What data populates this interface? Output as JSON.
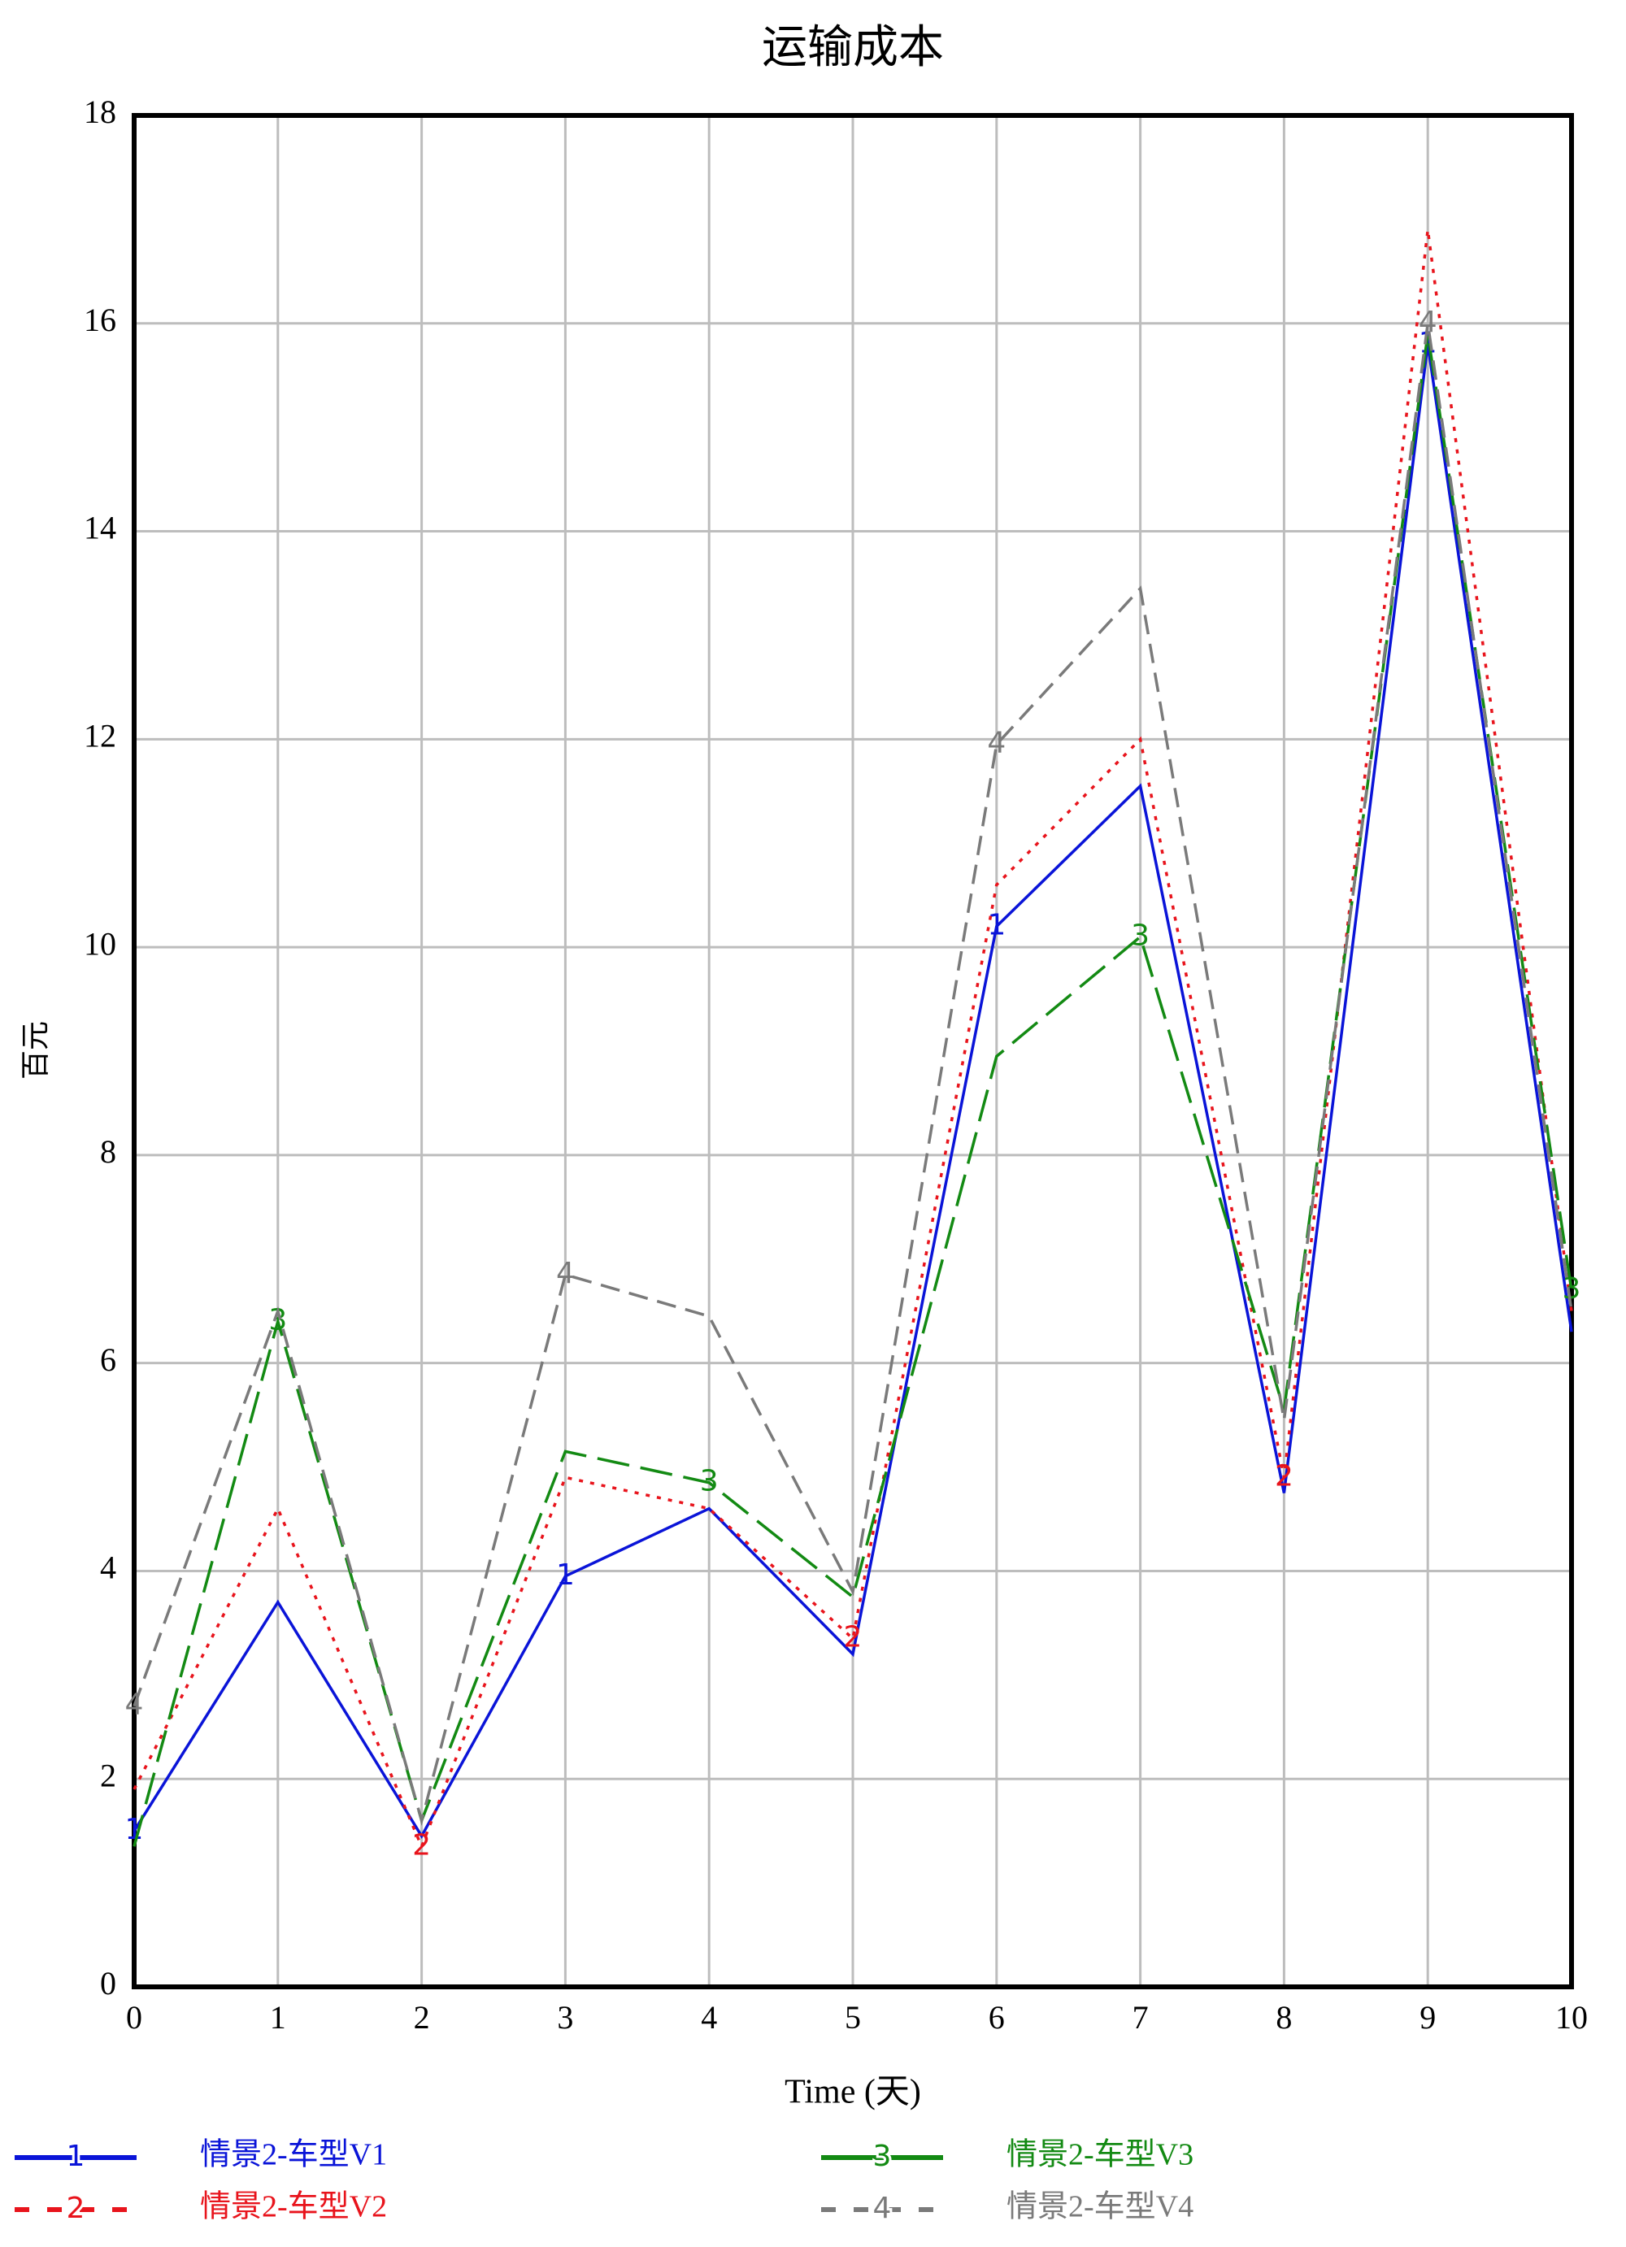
{
  "chart_data": {
    "type": "line",
    "title": "运输成本",
    "x_label": "Time (天)",
    "y_label": "百元",
    "x": [
      0,
      1,
      2,
      3,
      4,
      5,
      6,
      7,
      8,
      9,
      10
    ],
    "xlim": [
      0,
      10
    ],
    "xticks": [
      0,
      1,
      2,
      3,
      4,
      5,
      6,
      7,
      8,
      9,
      10
    ],
    "ylim": [
      0,
      18
    ],
    "yticks": [
      0,
      2,
      4,
      6,
      8,
      10,
      12,
      14,
      16,
      18
    ],
    "grid": true,
    "series": [
      {
        "name": "情景2-车型V1",
        "marker": "1",
        "color": "#0a14d8",
        "style": "solid",
        "values": [
          1.5,
          3.7,
          1.45,
          3.95,
          4.6,
          3.2,
          10.2,
          11.55,
          4.75,
          15.8,
          6.3
        ]
      },
      {
        "name": "情景2-车型V2",
        "marker": "2",
        "color": "#e8141c",
        "style": "dotted",
        "values": [
          1.9,
          4.6,
          1.35,
          4.9,
          4.6,
          3.35,
          10.6,
          12.0,
          4.9,
          16.9,
          6.5
        ]
      },
      {
        "name": "情景2-车型V3",
        "marker": "3",
        "color": "#138a13",
        "style": "longdash",
        "values": [
          1.35,
          6.4,
          1.6,
          5.15,
          4.85,
          3.75,
          8.95,
          10.1,
          5.55,
          15.9,
          6.7
        ]
      },
      {
        "name": "情景2-车型V4",
        "marker": "4",
        "color": "#7a7a7a",
        "style": "dashed",
        "values": [
          2.7,
          6.5,
          1.6,
          6.85,
          6.45,
          3.8,
          11.95,
          13.45,
          5.45,
          16.0,
          6.5
        ]
      }
    ]
  }
}
